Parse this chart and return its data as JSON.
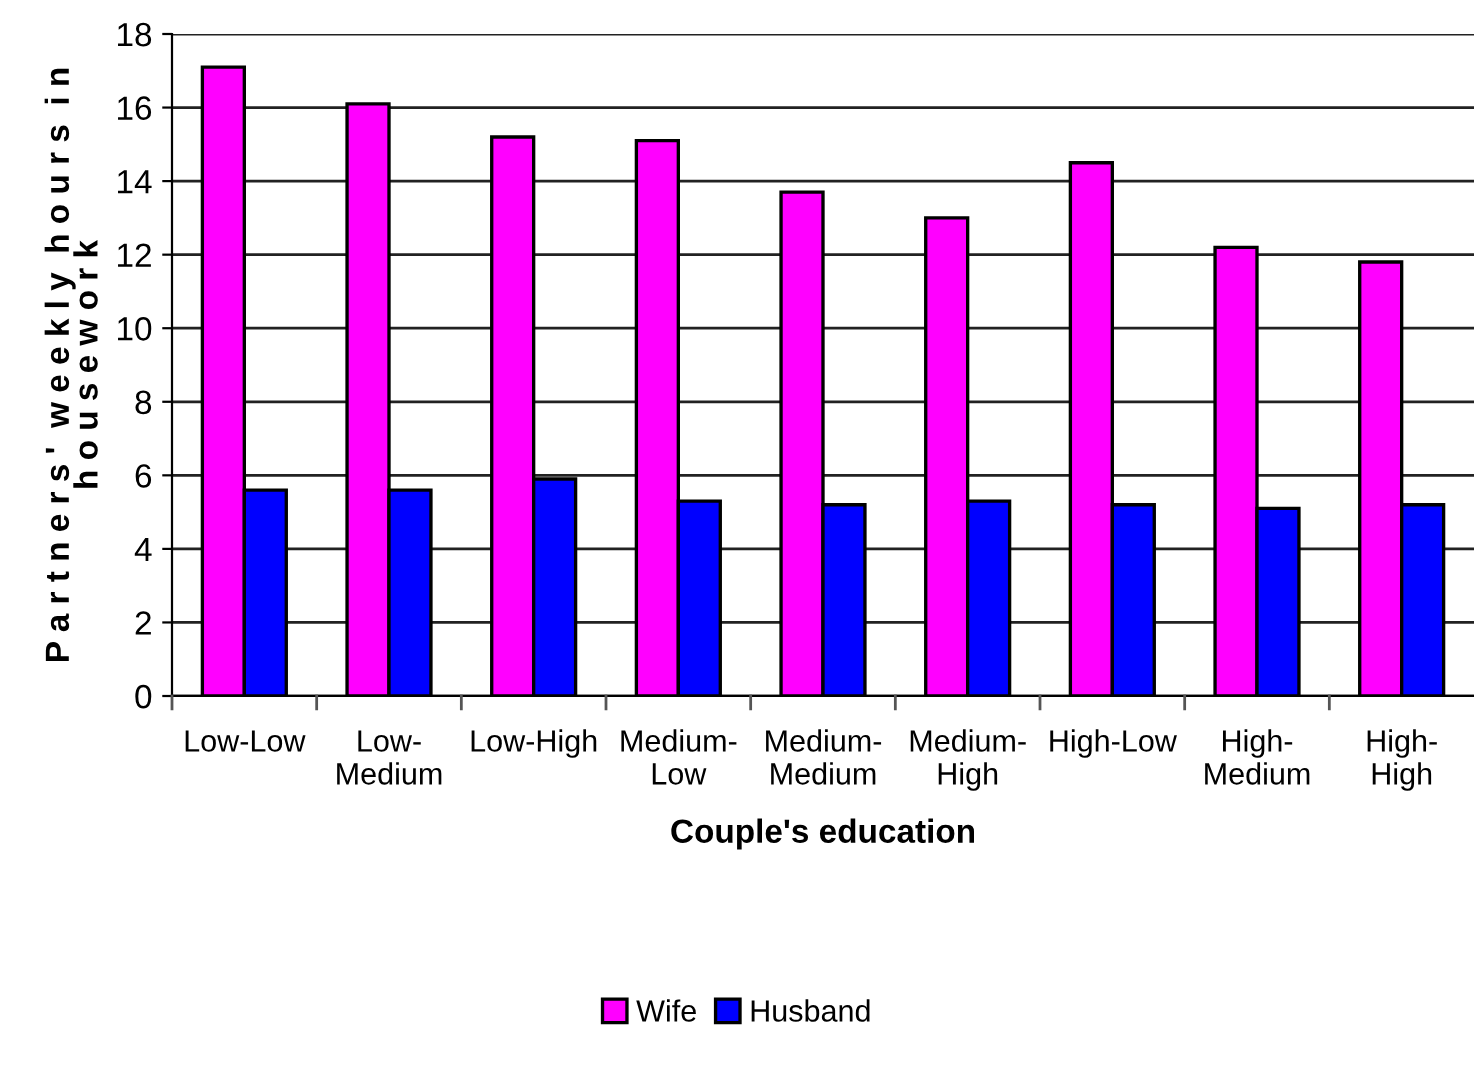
{
  "chart_data": {
    "type": "bar",
    "xlabel": "Couple's education",
    "ylabel": "P a r t n e r s '  w e e k l y  h o u r s  i n\nh o u s e w o r k",
    "categories": [
      "Low-Low",
      "Low-\nMedium",
      "Low-High",
      "Medium-\nLow",
      "Medium-\nMedium",
      "Medium-\nHigh",
      "High-Low",
      "High-\nMedium",
      "High-\nHigh"
    ],
    "series": [
      {
        "name": "Wife",
        "color": "#ff00ff",
        "values": [
          17.1,
          16.1,
          15.2,
          15.1,
          13.7,
          13.0,
          14.5,
          12.2,
          11.8
        ]
      },
      {
        "name": "Husband",
        "color": "#0000ff",
        "values": [
          5.6,
          5.6,
          5.9,
          5.3,
          5.2,
          5.3,
          5.2,
          5.1,
          5.2
        ]
      }
    ],
    "ylim": [
      0,
      18
    ],
    "yticks": [
      0,
      2,
      4,
      6,
      8,
      10,
      12,
      14,
      16,
      18
    ],
    "grid": "y",
    "legend": "bottom"
  }
}
